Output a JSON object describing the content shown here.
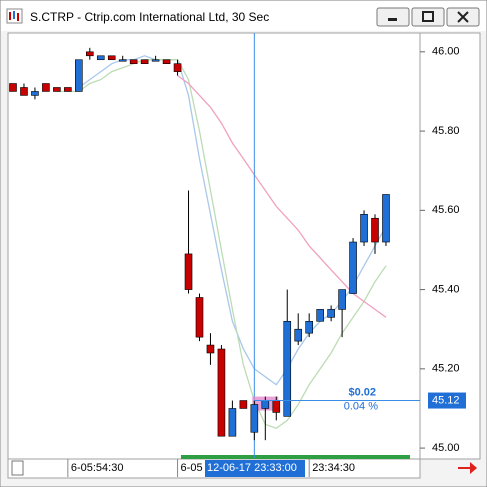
{
  "chart_data": {
    "type": "candlestick",
    "title": "S.CTRP - Ctrip.com International Ltd, 30 Sec",
    "categories": [
      null,
      null,
      null,
      null,
      null,
      "6-05:54:30",
      null,
      null,
      null,
      null,
      null,
      null,
      null,
      null,
      null,
      "6-05",
      null,
      null,
      null,
      null,
      null,
      null,
      null,
      null,
      null,
      null,
      null,
      "23:34:30",
      null,
      null,
      null,
      null,
      null,
      null,
      null
    ],
    "open": [
      45.92,
      45.91,
      45.89,
      45.92,
      45.91,
      45.91,
      45.9,
      46.0,
      45.98,
      45.99,
      45.98,
      45.98,
      45.98,
      45.98,
      45.98,
      45.97,
      45.49,
      45.38,
      45.26,
      45.25,
      45.03,
      45.12,
      45.04,
      45.1,
      45.12,
      45.08,
      45.27,
      45.29,
      45.32,
      45.33,
      45.35,
      45.39,
      45.52,
      45.58,
      45.52
    ],
    "high": [
      45.92,
      45.92,
      45.91,
      45.92,
      45.91,
      45.91,
      45.98,
      46.01,
      45.99,
      45.99,
      45.99,
      45.98,
      45.98,
      45.99,
      45.98,
      45.98,
      45.65,
      45.39,
      45.29,
      45.26,
      45.12,
      45.12,
      45.12,
      45.13,
      45.13,
      45.4,
      45.34,
      45.34,
      45.35,
      45.36,
      45.4,
      45.53,
      45.6,
      45.59,
      45.64
    ],
    "low": [
      45.9,
      45.89,
      45.88,
      45.9,
      45.9,
      45.9,
      45.9,
      45.98,
      45.98,
      45.98,
      45.98,
      45.97,
      45.97,
      45.98,
      45.97,
      45.94,
      45.39,
      45.27,
      45.21,
      45.03,
      45.03,
      45.1,
      45.02,
      45.02,
      45.07,
      45.08,
      45.26,
      45.28,
      45.32,
      45.32,
      45.28,
      45.39,
      45.51,
      45.49,
      45.51
    ],
    "close": [
      45.9,
      45.89,
      45.9,
      45.9,
      45.9,
      45.9,
      45.98,
      45.99,
      45.99,
      45.98,
      45.98,
      45.97,
      45.97,
      45.98,
      45.97,
      45.95,
      45.4,
      45.28,
      45.24,
      45.03,
      45.1,
      45.1,
      45.11,
      45.12,
      45.09,
      45.32,
      45.3,
      45.32,
      45.35,
      45.35,
      45.4,
      45.52,
      45.59,
      45.52,
      45.64
    ],
    "up_color": "#1f6fd6",
    "down_color": "#c80000",
    "lines": [
      {
        "color": "#a9c8ea",
        "values": [
          null,
          null,
          null,
          null,
          null,
          null,
          45.91,
          45.93,
          45.95,
          45.97,
          45.98,
          45.98,
          45.99,
          45.98,
          45.98,
          45.98,
          45.89,
          45.73,
          45.59,
          45.45,
          45.32,
          45.25,
          45.2,
          45.18,
          45.16,
          45.2,
          45.25,
          45.29,
          45.32,
          45.34,
          45.37,
          45.41,
          45.46,
          45.51,
          45.56
        ]
      },
      {
        "color": "#bcdcb4",
        "values": [
          null,
          null,
          null,
          null,
          45.9,
          45.9,
          45.9,
          45.92,
          45.93,
          45.95,
          45.96,
          45.97,
          45.98,
          45.98,
          45.98,
          45.98,
          45.93,
          45.8,
          45.65,
          45.5,
          45.35,
          45.21,
          45.12,
          45.06,
          45.05,
          45.07,
          45.11,
          45.16,
          45.2,
          45.24,
          45.29,
          45.33,
          45.37,
          45.42,
          45.46
        ]
      },
      {
        "color": "#f0a0c0",
        "values": [
          null,
          null,
          null,
          null,
          null,
          null,
          null,
          null,
          null,
          null,
          null,
          null,
          null,
          null,
          null,
          45.94,
          45.92,
          45.89,
          45.86,
          45.82,
          45.77,
          45.73,
          45.69,
          45.65,
          45.61,
          45.58,
          45.55,
          45.51,
          45.48,
          45.45,
          45.42,
          45.39,
          45.37,
          45.35,
          45.33
        ]
      }
    ],
    "ylim": [
      44.975,
      46.05
    ],
    "yticks": [
      {
        "value": 45.0,
        "label": "45.00"
      },
      {
        "value": 45.2,
        "label": "45.20"
      },
      {
        "value": 45.4,
        "label": "45.40"
      },
      {
        "value": 45.6,
        "label": "45.60"
      },
      {
        "value": 45.8,
        "label": "45.80"
      },
      {
        "value": 46.0,
        "label": "46.00"
      }
    ],
    "crosshair": {
      "x_label": "12-06-17 23:33:00",
      "price": 45.12,
      "change": "$0.02",
      "change_pct": "0.04 %"
    }
  }
}
